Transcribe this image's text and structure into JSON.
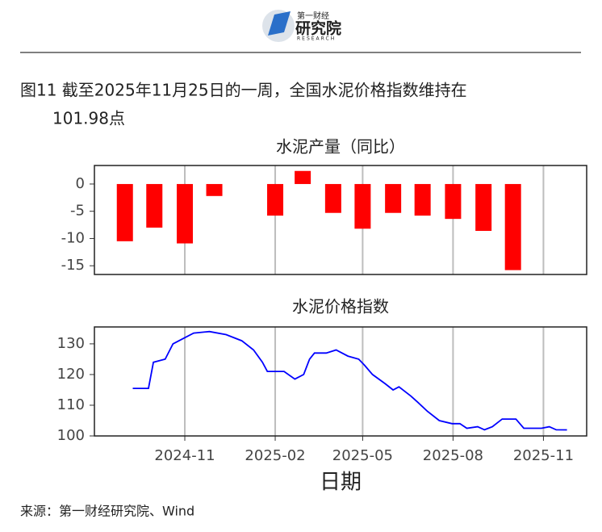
{
  "header": {
    "brand": "第一财经",
    "name": "研究院",
    "tagline": "RESEARCH"
  },
  "figure_title": [
    "图11  截至2025年11月25日的一周，全国水泥价格指数维持在",
    "101.98点"
  ],
  "source": "来源：第一财经研究院、Wind",
  "chart_data": [
    {
      "type": "bar",
      "title": "水泥产量（同比）",
      "color": "#ff0000",
      "x": [
        "2024-09",
        "2024-10",
        "2024-11",
        "2024-12",
        "2025-02",
        "2025-03",
        "2025-04",
        "2025-05",
        "2025-06",
        "2025-07",
        "2025-08",
        "2025-09",
        "2025-10"
      ],
      "values": [
        -10.5,
        -8.0,
        -10.9,
        -2.2,
        -5.8,
        2.4,
        -5.3,
        -8.2,
        -5.3,
        -5.8,
        -6.4,
        -8.6,
        -15.8
      ],
      "xlim": [
        "2024-08-01",
        "2025-12-15"
      ],
      "xticks": [
        "2024-11",
        "2025-02",
        "2025-05",
        "2025-08",
        "2025-11"
      ],
      "ylim": [
        -16.6,
        3.4
      ],
      "yticks": [
        0,
        -5,
        -10,
        -15
      ],
      "grid": true
    },
    {
      "type": "line",
      "title": "水泥价格指数",
      "color": "#0000ff",
      "x_label": "日期",
      "x": [
        "2024-09-09",
        "2024-09-25",
        "2024-09-30",
        "2024-10-12",
        "2024-10-20",
        "2024-11-01",
        "2024-11-10",
        "2024-11-26",
        "2024-12-13",
        "2024-12-29",
        "2025-01-10",
        "2025-01-19",
        "2025-01-24",
        "2025-02-10",
        "2025-02-21",
        "2025-03-02",
        "2025-03-08",
        "2025-03-13",
        "2025-03-25",
        "2025-04-04",
        "2025-04-16",
        "2025-04-27",
        "2025-05-03",
        "2025-05-11",
        "2025-05-24",
        "2025-06-01",
        "2025-06-07",
        "2025-06-19",
        "2025-06-26",
        "2025-07-06",
        "2025-07-18",
        "2025-07-31",
        "2025-08-08",
        "2025-08-15",
        "2025-08-26",
        "2025-09-02",
        "2025-09-10",
        "2025-09-20",
        "2025-10-04",
        "2025-10-12",
        "2025-10-30",
        "2025-11-07",
        "2025-11-14",
        "2025-11-25"
      ],
      "values": [
        115.5,
        115.5,
        124,
        125,
        130,
        132,
        133.5,
        134,
        133,
        131,
        128,
        124,
        121,
        121,
        118.5,
        120,
        125,
        127,
        127,
        128,
        126,
        125,
        123,
        120,
        117,
        115,
        116,
        113,
        111,
        108,
        105,
        104,
        104,
        102.5,
        103,
        102,
        103,
        105.5,
        105.5,
        102.5,
        102.5,
        103,
        102,
        101.98
      ],
      "xlim": [
        "2024-08-01",
        "2025-12-15"
      ],
      "xticks": [
        "2024-11",
        "2025-02",
        "2025-05",
        "2025-08",
        "2025-11"
      ],
      "ylim": [
        100,
        135.5
      ],
      "yticks": [
        130,
        120,
        110,
        100
      ],
      "grid": true
    }
  ]
}
